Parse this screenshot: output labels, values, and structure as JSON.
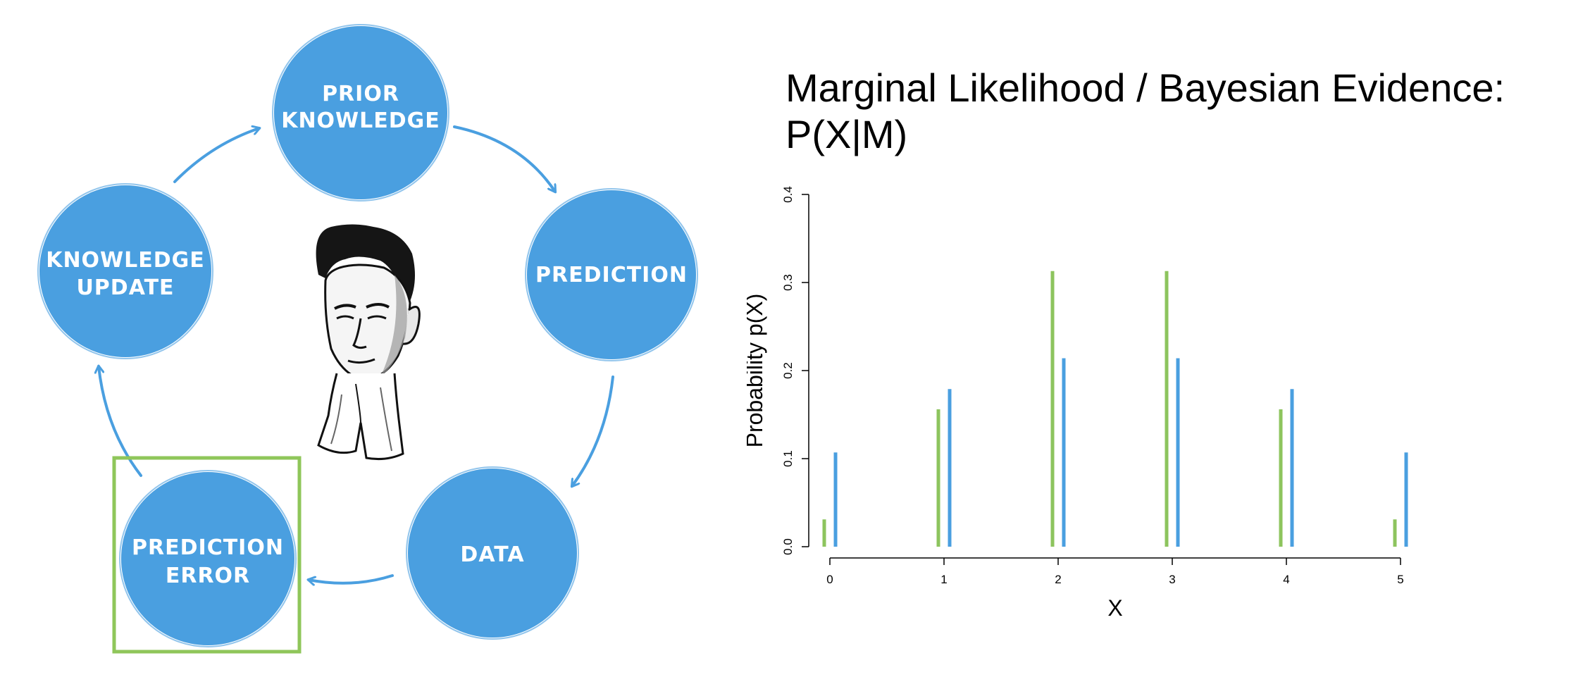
{
  "diagram": {
    "nodes": [
      {
        "id": "prior-knowledge",
        "lines": [
          "PRIOR",
          "KNOWLEDGE"
        ]
      },
      {
        "id": "prediction",
        "lines": [
          "PREDICTION"
        ]
      },
      {
        "id": "data",
        "lines": [
          "DATA"
        ]
      },
      {
        "id": "prediction-error",
        "lines": [
          "PREDICTION",
          "ERROR"
        ],
        "highlighted": true
      },
      {
        "id": "knowledge-update",
        "lines": [
          "KNOWLEDGE",
          "UPDATE"
        ]
      }
    ],
    "colors": {
      "node": "#4a9fe0",
      "arrow": "#4a9fe0",
      "highlight": "#8fc65a"
    }
  },
  "chart_title": {
    "line1": "Marginal Likelihood / Bayesian Evidence:",
    "line2": "P(X|M)"
  },
  "chart_data": {
    "type": "bar",
    "xlabel": "X",
    "ylabel": "Probability p(X)",
    "categories": [
      "0",
      "1",
      "2",
      "3",
      "4",
      "5"
    ],
    "yticks": [
      "0.0",
      "0.1",
      "0.2",
      "0.3",
      "0.4"
    ],
    "ylim": [
      0,
      0.4
    ],
    "series": [
      {
        "color": "#8dc45e",
        "values": [
          0.031,
          0.156,
          0.313,
          0.313,
          0.156,
          0.031
        ]
      },
      {
        "color": "#4a9fe0",
        "values": [
          0.107,
          0.179,
          0.214,
          0.214,
          0.179,
          0.107
        ]
      }
    ],
    "grid": false
  }
}
